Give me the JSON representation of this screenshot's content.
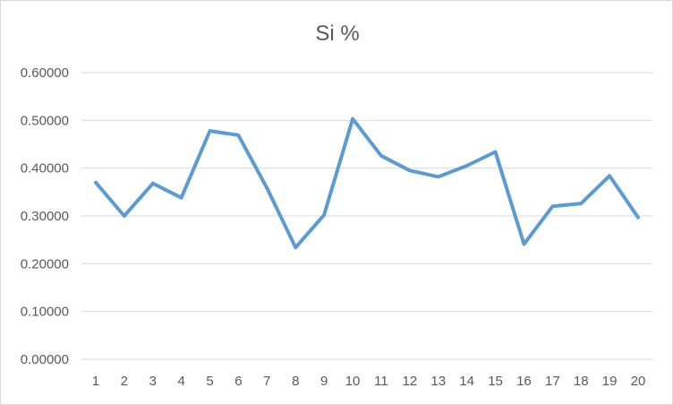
{
  "chart_data": {
    "type": "line",
    "title": "Si %",
    "xlabel": "",
    "ylabel": "",
    "categories": [
      "1",
      "2",
      "3",
      "4",
      "5",
      "6",
      "7",
      "8",
      "9",
      "10",
      "11",
      "12",
      "13",
      "14",
      "15",
      "16",
      "17",
      "18",
      "19",
      "20"
    ],
    "series": [
      {
        "values": [
          0.37,
          0.3,
          0.368,
          0.338,
          0.478,
          0.469,
          0.358,
          0.234,
          0.302,
          0.503,
          0.426,
          0.395,
          0.382,
          0.405,
          0.434,
          0.241,
          0.32,
          0.326,
          0.384,
          0.297
        ],
        "color": "#5b9bd5"
      }
    ],
    "ylim": [
      0,
      0.6
    ],
    "yticks": [
      "0.00000",
      "0.10000",
      "0.20000",
      "0.30000",
      "0.40000",
      "0.50000",
      "0.60000"
    ],
    "grid": true,
    "legend": "none"
  }
}
